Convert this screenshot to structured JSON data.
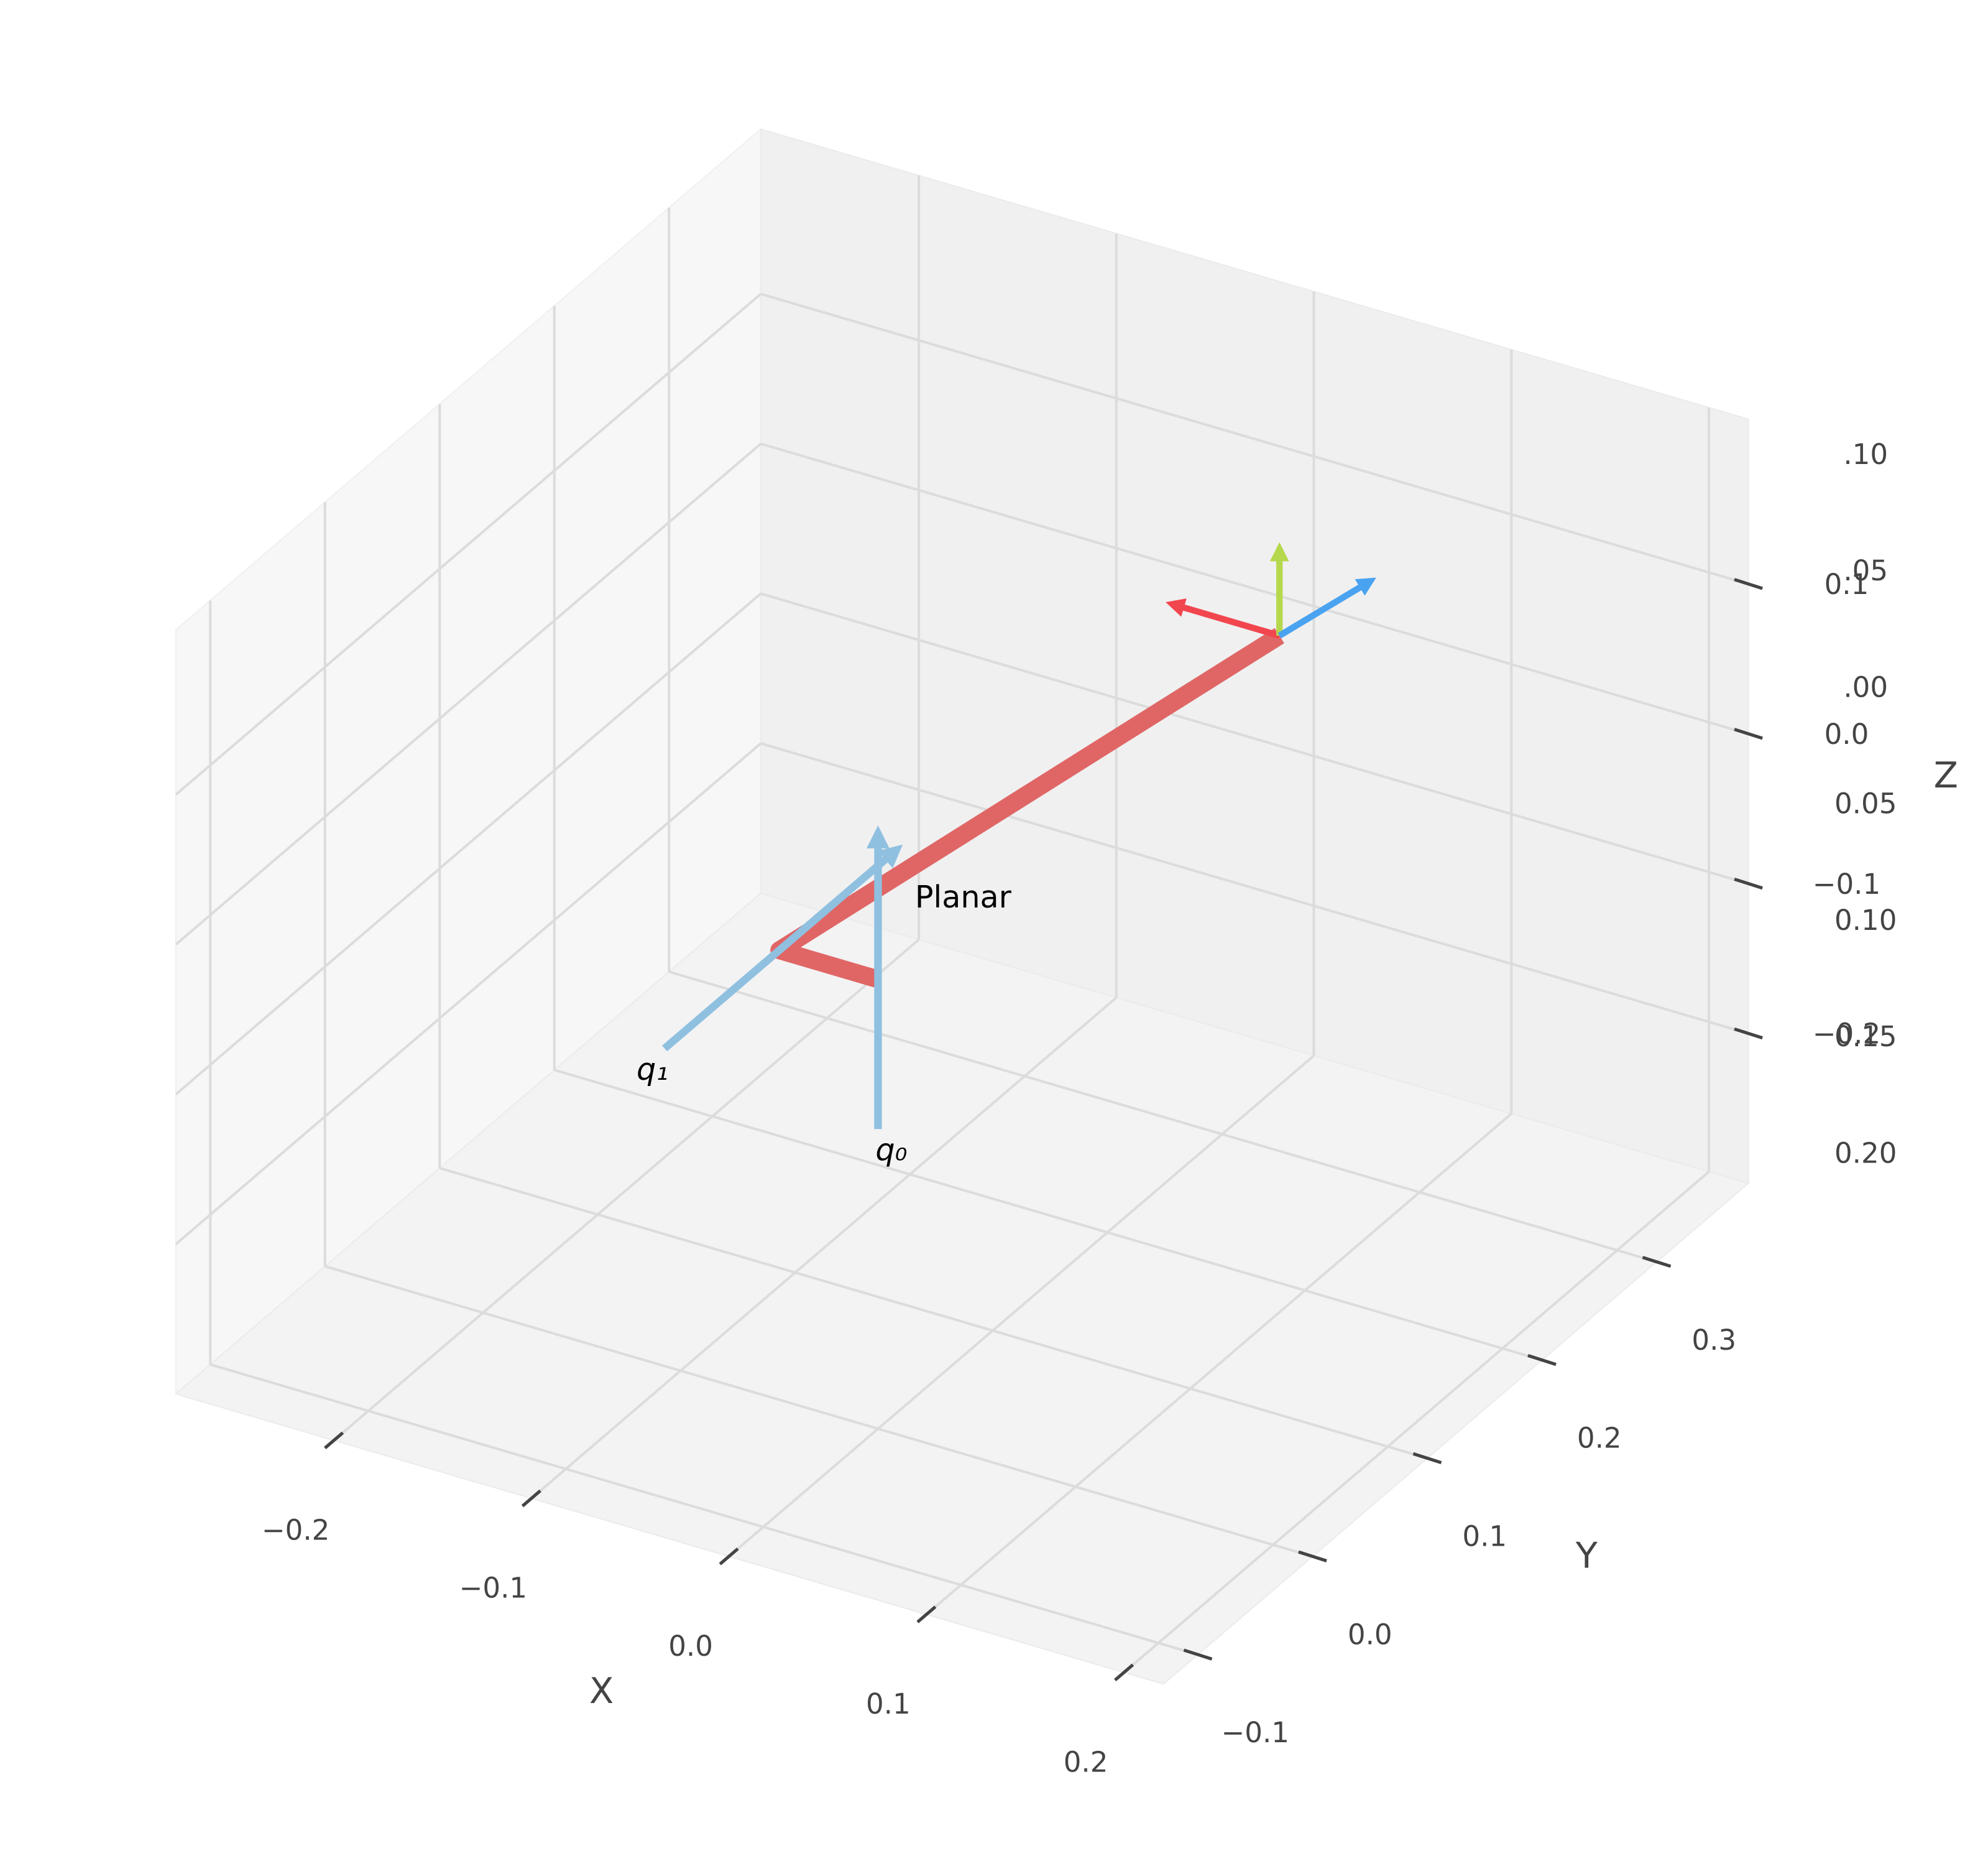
{
  "chart_data": {
    "type": "robot3d",
    "xlabel": "X",
    "ylabel": "Y",
    "zlabel": "Z",
    "xlim": [
      -0.28,
      0.22
    ],
    "ylim": [
      -0.13,
      0.38
    ],
    "zlim": [
      -0.3,
      0.21
    ],
    "xticks": [
      {
        "value": -0.2,
        "label": "−0.2"
      },
      {
        "value": -0.1,
        "label": "−0.1"
      },
      {
        "value": 0,
        "label": "0.0"
      },
      0.1,
      0.2
    ],
    "yticks": [
      {
        "value": -0.1,
        "label": "−0.1"
      },
      {
        "value": 0,
        "label": "0.0"
      },
      0.1,
      0.2,
      0.3
    ],
    "zticks": [
      {
        "value": -0.2,
        "label": "−0.2"
      },
      {
        "value": -0.1,
        "label": "−0.1"
      },
      {
        "value": 0,
        "label": "0.0"
      },
      0.1
    ],
    "z2lim": [
      -0.212,
      0.116
    ],
    "z2ticks": [
      {
        "value": 0.1,
        "label": ".10"
      },
      {
        "value": 0.05,
        "label": ".05"
      },
      {
        "value": 0,
        "label": ".00"
      },
      {
        "value": -0.05,
        "label": "0.05"
      },
      {
        "value": -0.1,
        "label": "0.10"
      },
      {
        "value": -0.15,
        "label": "0.15"
      },
      {
        "value": -0.2,
        "label": "0.20"
      }
    ],
    "grid": true,
    "robot": {
      "name": "Planar",
      "color": "#e06666",
      "x": [
        0,
        -0.05,
        0
      ],
      "y": [
        0,
        0,
        0.35
      ],
      "z": [
        0,
        0,
        0
      ]
    },
    "joints": [
      {
        "name": "q₀",
        "color": "#8fc0e0",
        "x": [
          0,
          0
        ],
        "y": [
          0,
          0
        ],
        "z": [
          -0.1,
          0.095
        ]
      },
      {
        "name": "q₁",
        "color": "#8fc0e0",
        "x": [
          -0.05,
          -0.05
        ],
        "y": [
          -0.1,
          0.1
        ],
        "z": [
          0,
          0
        ]
      }
    ],
    "frame": [
      {
        "color": "#f2464f",
        "x": [
          0,
          -0.053
        ],
        "y": [
          0.35,
          0.35
        ],
        "z": [
          0,
          0
        ]
      },
      {
        "color": "#b5d84c",
        "x": [
          0,
          0
        ],
        "y": [
          0.35,
          0.35
        ],
        "z": [
          0,
          0.056
        ]
      },
      {
        "color": "#4aa3f0",
        "x": [
          0,
          0.01
        ],
        "y": [
          0.35,
          0.41
        ],
        "z": [
          0,
          0
        ]
      }
    ]
  }
}
